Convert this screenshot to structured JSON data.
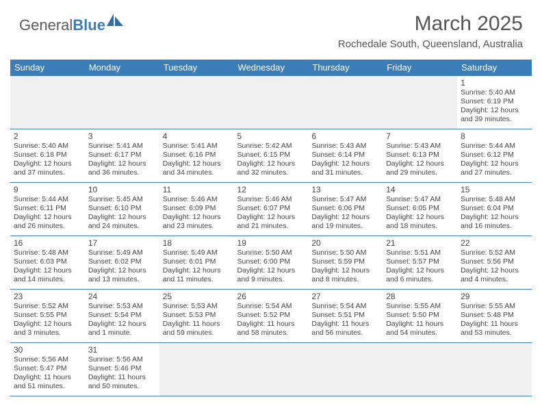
{
  "logo": {
    "word1": "General",
    "word2": "Blue"
  },
  "title": "March 2025",
  "location": "Rochedale South, Queensland, Australia",
  "colors": {
    "header_bg": "#3a7db8",
    "header_text": "#ffffff",
    "cell_border": "#3a7db8",
    "text": "#444444",
    "empty_bg": "#f0f0f0"
  },
  "dayHeaders": [
    "Sunday",
    "Monday",
    "Tuesday",
    "Wednesday",
    "Thursday",
    "Friday",
    "Saturday"
  ],
  "weeks": [
    [
      null,
      null,
      null,
      null,
      null,
      null,
      {
        "n": "1",
        "sr": "5:40 AM",
        "ss": "6:19 PM",
        "dl": "12 hours and 39 minutes."
      }
    ],
    [
      {
        "n": "2",
        "sr": "5:40 AM",
        "ss": "6:18 PM",
        "dl": "12 hours and 37 minutes."
      },
      {
        "n": "3",
        "sr": "5:41 AM",
        "ss": "6:17 PM",
        "dl": "12 hours and 36 minutes."
      },
      {
        "n": "4",
        "sr": "5:41 AM",
        "ss": "6:16 PM",
        "dl": "12 hours and 34 minutes."
      },
      {
        "n": "5",
        "sr": "5:42 AM",
        "ss": "6:15 PM",
        "dl": "12 hours and 32 minutes."
      },
      {
        "n": "6",
        "sr": "5:43 AM",
        "ss": "6:14 PM",
        "dl": "12 hours and 31 minutes."
      },
      {
        "n": "7",
        "sr": "5:43 AM",
        "ss": "6:13 PM",
        "dl": "12 hours and 29 minutes."
      },
      {
        "n": "8",
        "sr": "5:44 AM",
        "ss": "6:12 PM",
        "dl": "12 hours and 27 minutes."
      }
    ],
    [
      {
        "n": "9",
        "sr": "5:44 AM",
        "ss": "6:11 PM",
        "dl": "12 hours and 26 minutes."
      },
      {
        "n": "10",
        "sr": "5:45 AM",
        "ss": "6:10 PM",
        "dl": "12 hours and 24 minutes."
      },
      {
        "n": "11",
        "sr": "5:46 AM",
        "ss": "6:09 PM",
        "dl": "12 hours and 23 minutes."
      },
      {
        "n": "12",
        "sr": "5:46 AM",
        "ss": "6:07 PM",
        "dl": "12 hours and 21 minutes."
      },
      {
        "n": "13",
        "sr": "5:47 AM",
        "ss": "6:06 PM",
        "dl": "12 hours and 19 minutes."
      },
      {
        "n": "14",
        "sr": "5:47 AM",
        "ss": "6:05 PM",
        "dl": "12 hours and 18 minutes."
      },
      {
        "n": "15",
        "sr": "5:48 AM",
        "ss": "6:04 PM",
        "dl": "12 hours and 16 minutes."
      }
    ],
    [
      {
        "n": "16",
        "sr": "5:48 AM",
        "ss": "6:03 PM",
        "dl": "12 hours and 14 minutes."
      },
      {
        "n": "17",
        "sr": "5:49 AM",
        "ss": "6:02 PM",
        "dl": "12 hours and 13 minutes."
      },
      {
        "n": "18",
        "sr": "5:49 AM",
        "ss": "6:01 PM",
        "dl": "12 hours and 11 minutes."
      },
      {
        "n": "19",
        "sr": "5:50 AM",
        "ss": "6:00 PM",
        "dl": "12 hours and 9 minutes."
      },
      {
        "n": "20",
        "sr": "5:50 AM",
        "ss": "5:59 PM",
        "dl": "12 hours and 8 minutes."
      },
      {
        "n": "21",
        "sr": "5:51 AM",
        "ss": "5:57 PM",
        "dl": "12 hours and 6 minutes."
      },
      {
        "n": "22",
        "sr": "5:52 AM",
        "ss": "5:56 PM",
        "dl": "12 hours and 4 minutes."
      }
    ],
    [
      {
        "n": "23",
        "sr": "5:52 AM",
        "ss": "5:55 PM",
        "dl": "12 hours and 3 minutes."
      },
      {
        "n": "24",
        "sr": "5:53 AM",
        "ss": "5:54 PM",
        "dl": "12 hours and 1 minute."
      },
      {
        "n": "25",
        "sr": "5:53 AM",
        "ss": "5:53 PM",
        "dl": "11 hours and 59 minutes."
      },
      {
        "n": "26",
        "sr": "5:54 AM",
        "ss": "5:52 PM",
        "dl": "11 hours and 58 minutes."
      },
      {
        "n": "27",
        "sr": "5:54 AM",
        "ss": "5:51 PM",
        "dl": "11 hours and 56 minutes."
      },
      {
        "n": "28",
        "sr": "5:55 AM",
        "ss": "5:50 PM",
        "dl": "11 hours and 54 minutes."
      },
      {
        "n": "29",
        "sr": "5:55 AM",
        "ss": "5:48 PM",
        "dl": "11 hours and 53 minutes."
      }
    ],
    [
      {
        "n": "30",
        "sr": "5:56 AM",
        "ss": "5:47 PM",
        "dl": "11 hours and 51 minutes."
      },
      {
        "n": "31",
        "sr": "5:56 AM",
        "ss": "5:46 PM",
        "dl": "11 hours and 50 minutes."
      },
      null,
      null,
      null,
      null,
      null
    ]
  ],
  "labels": {
    "sunrise": "Sunrise: ",
    "sunset": "Sunset: ",
    "daylight": "Daylight: "
  }
}
